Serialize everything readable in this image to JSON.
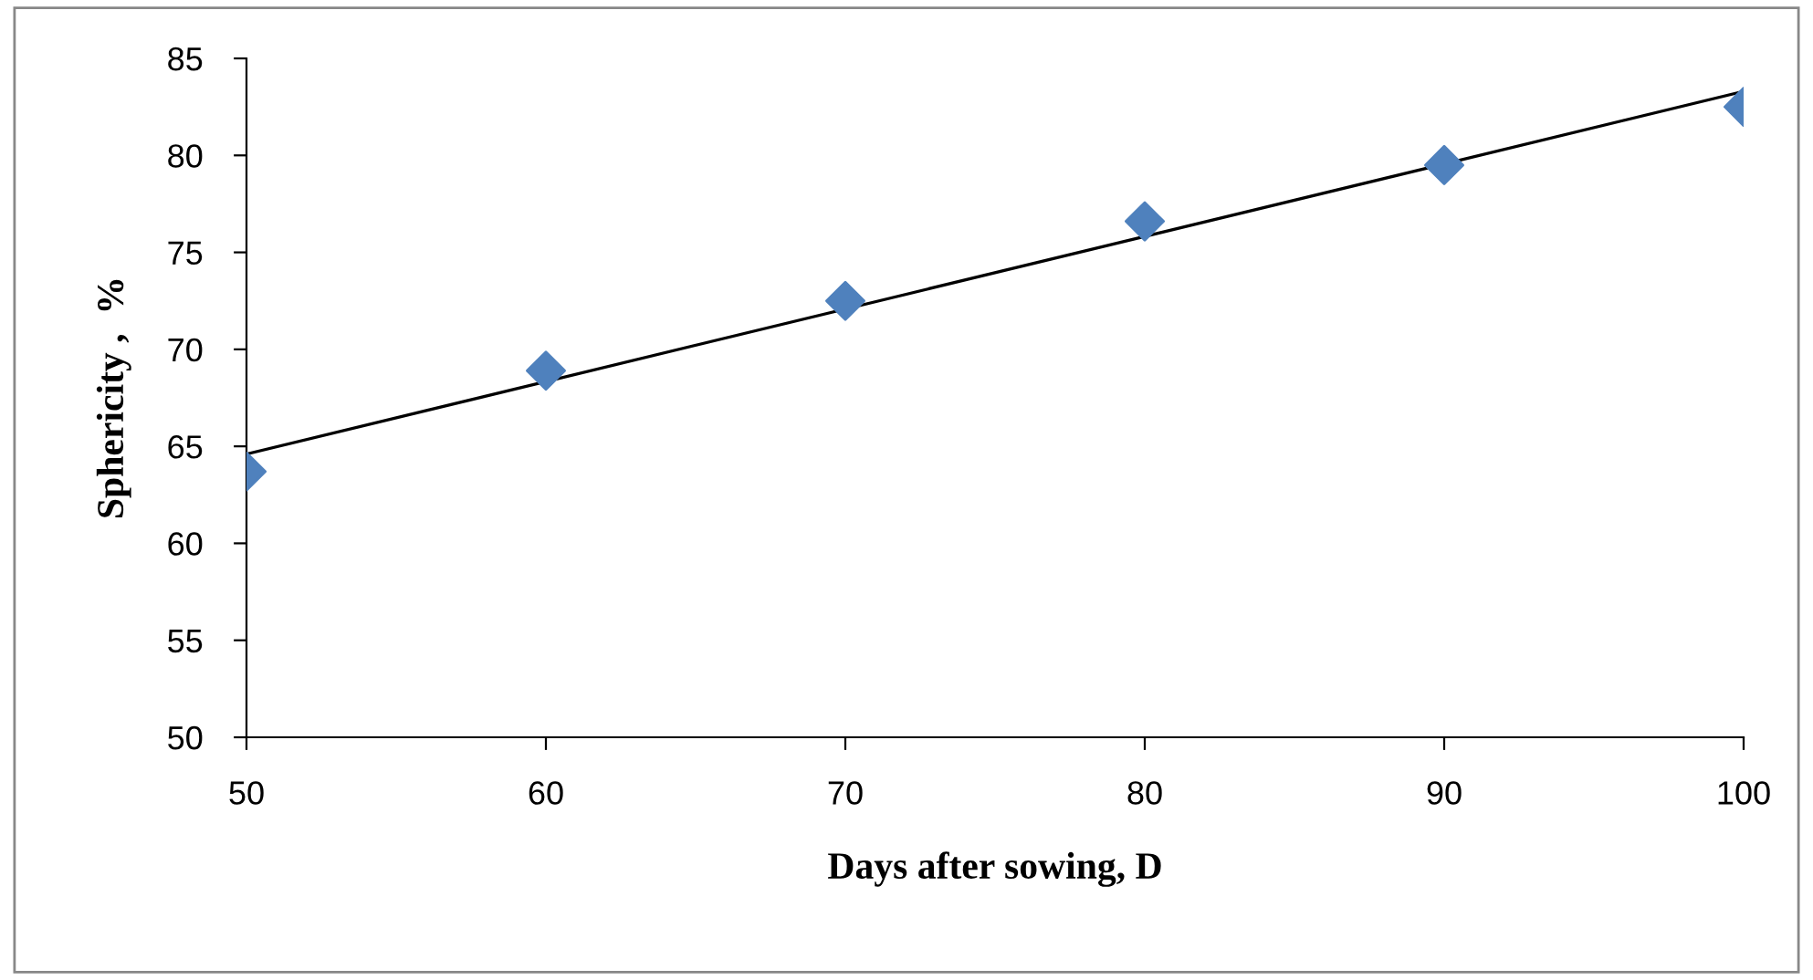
{
  "chart_data": {
    "type": "scatter",
    "xlabel": "Days after sowing, D",
    "ylabel": "Sphericity ,  %",
    "x": [
      50,
      60,
      70,
      80,
      90,
      100
    ],
    "series": [
      {
        "color": "#4f81bd",
        "marker": "diamond",
        "values": [
          63.7,
          68.9,
          72.5,
          76.6,
          79.5,
          82.5
        ]
      },
      {
        "type": "line",
        "color": "#000000",
        "marker": "none",
        "x": [
          50,
          100
        ],
        "values": [
          64.6,
          83.3
        ]
      }
    ],
    "xlim": [
      50,
      100
    ],
    "xticks": [
      50,
      60,
      70,
      80,
      90,
      100
    ],
    "ylim": [
      50,
      85
    ],
    "yticks": [
      50,
      55,
      60,
      65,
      70,
      75,
      80,
      85
    ],
    "grid": false,
    "legend": false
  }
}
